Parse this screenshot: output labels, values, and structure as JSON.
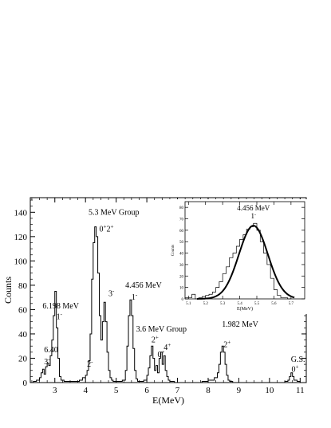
{
  "chart_data": [
    {
      "type": "histogram",
      "xlabel": "E(MeV)",
      "ylabel": "Counts",
      "xlim": [
        2.2,
        11.2
      ],
      "ylim": [
        0,
        152
      ],
      "x_ticks": [
        3,
        4,
        5,
        6,
        7,
        8,
        9,
        10,
        11
      ],
      "y_ticks": [
        0,
        20,
        40,
        60,
        80,
        100,
        120,
        140
      ],
      "x_tick_labels": [
        "3",
        "4",
        "5",
        "6",
        "7",
        "8",
        "9",
        "10",
        "11"
      ],
      "y_tick_labels": [
        "0",
        "20",
        "40",
        "60",
        "80",
        "100",
        "120",
        "140"
      ],
      "spectrum": {
        "x": [
          2.2,
          2.3,
          2.4,
          2.5,
          2.55,
          2.6,
          2.65,
          2.7,
          2.75,
          2.8,
          2.85,
          2.9,
          2.95,
          3.0,
          3.05,
          3.1,
          3.15,
          3.2,
          3.3,
          3.4,
          3.5,
          3.6,
          3.7,
          3.8,
          3.9,
          4.0,
          4.05,
          4.1,
          4.15,
          4.2,
          4.25,
          4.3,
          4.35,
          4.4,
          4.45,
          4.5,
          4.55,
          4.6,
          4.65,
          4.7,
          4.75,
          4.8,
          4.85,
          4.9,
          5.0,
          5.1,
          5.2,
          5.3,
          5.35,
          5.4,
          5.45,
          5.5,
          5.55,
          5.6,
          5.65,
          5.7,
          5.8,
          5.9,
          6.0,
          6.05,
          6.1,
          6.15,
          6.2,
          6.25,
          6.3,
          6.35,
          6.4,
          6.45,
          6.5,
          6.55,
          6.6,
          6.65,
          6.7,
          6.75,
          6.8,
          6.9,
          7.0,
          7.2,
          7.4,
          7.6,
          7.8,
          8.0,
          8.2,
          8.3,
          8.35,
          8.4,
          8.45,
          8.5,
          8.55,
          8.6,
          8.65,
          8.7,
          8.8,
          9.0,
          9.5,
          10.0,
          10.4,
          10.5,
          10.6,
          10.65,
          10.7,
          10.75,
          10.8,
          10.9,
          11.0,
          11.2
        ],
        "y": [
          0,
          1,
          2,
          4,
          8,
          11,
          7,
          13,
          16,
          14,
          22,
          35,
          55,
          75,
          45,
          20,
          5,
          2,
          1,
          1,
          1,
          1,
          1,
          2,
          4,
          6,
          10,
          18,
          40,
          85,
          115,
          128,
          120,
          90,
          55,
          35,
          50,
          66,
          50,
          25,
          10,
          4,
          2,
          1,
          1,
          1,
          2,
          10,
          30,
          55,
          68,
          55,
          28,
          10,
          3,
          1,
          1,
          2,
          6,
          12,
          22,
          30,
          20,
          10,
          14,
          8,
          20,
          25,
          15,
          22,
          10,
          5,
          2,
          1,
          1,
          0,
          0,
          0,
          0,
          0,
          1,
          2,
          4,
          8,
          15,
          25,
          30,
          25,
          15,
          6,
          2,
          1,
          0,
          0,
          0,
          0,
          0,
          1,
          2,
          5,
          8,
          5,
          2,
          1,
          0,
          0
        ]
      },
      "annotations": [
        {
          "text": "5.3 MeV Group",
          "x": 4.1,
          "y": 138
        },
        {
          "text": "0",
          "x": 4.45,
          "y": 124,
          "sup": "+",
          "tail": "2",
          "tail_sup": "+"
        },
        {
          "text": "3",
          "x": 4.75,
          "y": 71,
          "sup": "-"
        },
        {
          "text": "4.456 MeV",
          "x": 5.3,
          "y": 78
        },
        {
          "text": "1",
          "x": 5.5,
          "y": 68,
          "sup": "-"
        },
        {
          "text": "6.198 MeV",
          "x": 2.6,
          "y": 61
        },
        {
          "text": "1",
          "x": 3.05,
          "y": 52,
          "sup": "-"
        },
        {
          "text": "3.6 MeV Group",
          "x": 5.65,
          "y": 42
        },
        {
          "text": "2",
          "x": 6.15,
          "y": 33,
          "sup": "+"
        },
        {
          "text": "4",
          "x": 6.55,
          "y": 27,
          "sup": "+"
        },
        {
          "text": "0",
          "x": 6.35,
          "y": 21,
          "sup": "+"
        },
        {
          "text": "1.982 MeV",
          "x": 8.45,
          "y": 46
        },
        {
          "text": "2",
          "x": 8.5,
          "y": 29,
          "sup": "+"
        },
        {
          "text": "G.S.",
          "x": 10.7,
          "y": 17
        },
        {
          "text": "0",
          "x": 10.72,
          "y": 9,
          "sup": "+"
        },
        {
          "text": "6.40",
          "x": 2.65,
          "y": 25
        },
        {
          "text": "3",
          "x": 2.65,
          "y": 15,
          "sup": "-"
        },
        {
          "text": "2",
          "x": 4.05,
          "y": 13,
          "sup": "-"
        }
      ]
    },
    {
      "type": "histogram",
      "title": "4.456 MeV",
      "subtitle": "1",
      "subtitle_sup": "-",
      "xlabel": "E(MeV)",
      "ylabel": "Counts",
      "xlim": [
        5.08,
        5.78
      ],
      "ylim": [
        0,
        85
      ],
      "x_ticks": [
        5.1,
        5.2,
        5.3,
        5.4,
        5.5,
        5.6,
        5.7
      ],
      "y_ticks": [
        0,
        10,
        20,
        30,
        40,
        50,
        60,
        70,
        80
      ],
      "x_tick_labels": [
        "5.1",
        "5.2",
        "5.3",
        "5.4",
        "5.5",
        "5.6",
        "5.7"
      ],
      "y_tick_labels": [
        "0",
        "10",
        "20",
        "30",
        "40",
        "50",
        "60",
        "70",
        "80"
      ],
      "bins": {
        "edges": [
          5.08,
          5.1,
          5.12,
          5.14,
          5.16,
          5.18,
          5.2,
          5.22,
          5.24,
          5.26,
          5.28,
          5.3,
          5.32,
          5.34,
          5.36,
          5.38,
          5.4,
          5.42,
          5.44,
          5.46,
          5.48,
          5.5,
          5.52,
          5.54,
          5.56,
          5.58,
          5.6,
          5.62,
          5.64,
          5.66,
          5.68,
          5.7
        ],
        "counts": [
          1,
          1,
          4,
          0,
          1,
          2,
          3,
          4,
          6,
          10,
          15,
          22,
          28,
          36,
          40,
          46,
          52,
          56,
          61,
          63,
          66,
          60,
          50,
          40,
          30,
          18,
          8,
          3,
          1,
          1,
          0
        ]
      },
      "fit": {
        "type": "gaussian",
        "amplitude": 64,
        "mean": 5.48,
        "sigma": 0.085
      }
    }
  ]
}
